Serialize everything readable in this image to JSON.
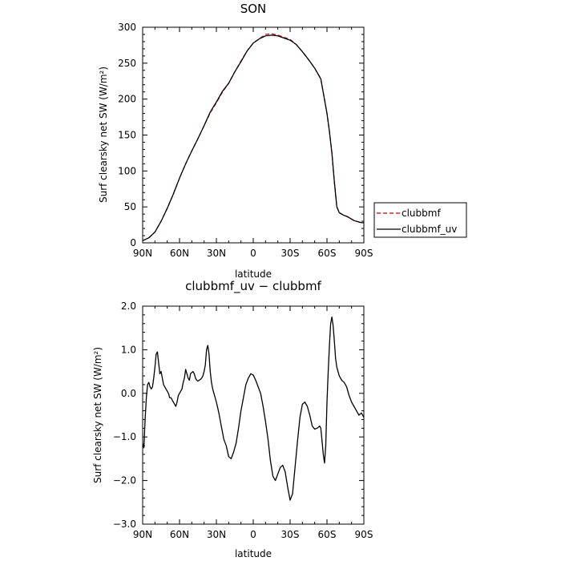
{
  "colors": {
    "clubbmf": "#cc0000",
    "clubbmf_uv": "#000000"
  },
  "chart_data": [
    {
      "type": "line",
      "title": "SON",
      "xlabel": "latitude",
      "ylabel": "Surf clearsky net SW (W/m²)",
      "xlim": [
        -90,
        90
      ],
      "ylim": [
        0,
        300
      ],
      "x_ticks": [
        -90,
        -60,
        -30,
        0,
        30,
        60,
        90
      ],
      "x_tick_labels": [
        "90N",
        "60N",
        "30N",
        "0",
        "30S",
        "60S",
        "90S"
      ],
      "y_ticks": [
        0,
        50,
        100,
        150,
        200,
        250,
        300
      ],
      "y_tick_labels": [
        "0",
        "50",
        "100",
        "150",
        "200",
        "250",
        "300"
      ],
      "grid": false,
      "legend": {
        "position": "right-outside"
      },
      "x": [
        -90,
        -85,
        -80,
        -75,
        -70,
        -65,
        -60,
        -55,
        -50,
        -45,
        -40,
        -35,
        -30,
        -25,
        -20,
        -15,
        -10,
        -5,
        0,
        5,
        10,
        15,
        20,
        25,
        30,
        35,
        40,
        45,
        50,
        55,
        60,
        62,
        64,
        66,
        68,
        70,
        72,
        74,
        76,
        78,
        80,
        82,
        84,
        86,
        88,
        90
      ],
      "series": [
        {
          "name": "clubbmf",
          "style": "dashed",
          "values": [
            3,
            7,
            15,
            30,
            48,
            68,
            90,
            110,
            128,
            145,
            163,
            181,
            195,
            210,
            222,
            238,
            253,
            267,
            278,
            284,
            290,
            291,
            289,
            286,
            283,
            276,
            266,
            255,
            243,
            228,
            180,
            155,
            125,
            85,
            50,
            42,
            40,
            38,
            37,
            35,
            33,
            31,
            30,
            29,
            28,
            28
          ]
        },
        {
          "name": "clubbmf_uv",
          "style": "solid",
          "values": [
            3,
            7,
            15,
            30,
            48,
            68,
            90,
            110,
            128,
            145,
            163,
            182,
            196,
            211,
            222,
            238,
            252,
            267,
            278,
            284,
            288,
            289,
            288,
            285,
            282,
            276,
            266,
            255,
            243,
            228,
            180,
            155,
            125,
            85,
            50,
            42,
            40,
            38,
            37,
            35,
            33,
            31,
            30,
            29,
            28,
            28
          ]
        }
      ]
    },
    {
      "type": "line",
      "title": "clubbmf_uv − clubbmf",
      "xlabel": "latitude",
      "ylabel": "Surf clearsky net SW (W/m²)",
      "xlim": [
        -90,
        90
      ],
      "ylim": [
        -3.0,
        2.0
      ],
      "x_ticks": [
        -90,
        -60,
        -30,
        0,
        30,
        60,
        90
      ],
      "x_tick_labels": [
        "90N",
        "60N",
        "30N",
        "0",
        "30S",
        "60S",
        "90S"
      ],
      "y_ticks": [
        -3.0,
        -2.0,
        -1.0,
        0.0,
        1.0,
        2.0
      ],
      "y_tick_labels": [
        "−3.0",
        "−2.0",
        "−1.0",
        "0.0",
        "1.0",
        "2.0"
      ],
      "grid": false,
      "x": [
        -90,
        -89,
        -88,
        -87,
        -86,
        -85,
        -84,
        -83,
        -82,
        -81,
        -80,
        -79,
        -78,
        -77,
        -76,
        -75,
        -74,
        -73,
        -72,
        -71,
        -70,
        -69,
        -68,
        -67,
        -66,
        -65,
        -64,
        -63,
        -62,
        -61,
        -60,
        -59,
        -58,
        -57,
        -56,
        -55,
        -54,
        -53,
        -52,
        -51,
        -50,
        -49,
        -48,
        -47,
        -46,
        -45,
        -44,
        -43,
        -42,
        -41,
        -40,
        -39,
        -38,
        -37,
        -36,
        -35,
        -34,
        -33,
        -32,
        -31,
        -30,
        -28,
        -26,
        -24,
        -22,
        -20,
        -18,
        -16,
        -14,
        -12,
        -10,
        -8,
        -6,
        -4,
        -2,
        0,
        2,
        4,
        6,
        8,
        10,
        12,
        14,
        16,
        18,
        20,
        22,
        24,
        26,
        28,
        30,
        32,
        34,
        36,
        38,
        40,
        42,
        44,
        46,
        48,
        50,
        52,
        54,
        55,
        56,
        57,
        58,
        59,
        60,
        61,
        62,
        63,
        64,
        65,
        66,
        67,
        68,
        70,
        72,
        74,
        76,
        78,
        80,
        82,
        84,
        86,
        88,
        90
      ],
      "series": [
        {
          "name": "clubbmf_uv − clubbmf",
          "values": [
            -1.15,
            -1.25,
            -0.6,
            -0.1,
            0.2,
            0.25,
            0.15,
            0.1,
            0.15,
            0.35,
            0.6,
            0.9,
            0.95,
            0.7,
            0.45,
            0.5,
            0.35,
            0.2,
            0.15,
            0.1,
            0.05,
            0.0,
            -0.1,
            -0.1,
            -0.15,
            -0.2,
            -0.25,
            -0.3,
            -0.2,
            -0.05,
            0.0,
            0.05,
            0.1,
            0.25,
            0.35,
            0.55,
            0.45,
            0.35,
            0.3,
            0.45,
            0.48,
            0.5,
            0.45,
            0.35,
            0.3,
            0.28,
            0.3,
            0.32,
            0.35,
            0.4,
            0.5,
            0.65,
            1.0,
            1.1,
            0.9,
            0.5,
            0.25,
            0.1,
            0.0,
            -0.1,
            -0.2,
            -0.45,
            -0.75,
            -1.05,
            -1.2,
            -1.45,
            -1.5,
            -1.35,
            -1.15,
            -0.8,
            -0.4,
            -0.1,
            0.2,
            0.35,
            0.45,
            0.42,
            0.3,
            0.15,
            0.0,
            -0.3,
            -0.65,
            -1.05,
            -1.55,
            -1.9,
            -2.0,
            -1.85,
            -1.7,
            -1.65,
            -1.8,
            -2.15,
            -2.45,
            -2.3,
            -1.7,
            -1.1,
            -0.55,
            -0.25,
            -0.2,
            -0.3,
            -0.5,
            -0.75,
            -0.82,
            -0.8,
            -0.75,
            -0.8,
            -1.1,
            -1.4,
            -1.6,
            -1.2,
            -0.2,
            0.5,
            1.1,
            1.6,
            1.75,
            1.55,
            1.2,
            0.8,
            0.6,
            0.4,
            0.3,
            0.25,
            0.15,
            -0.05,
            -0.2,
            -0.3,
            -0.4,
            -0.5,
            -0.45,
            -0.55
          ]
        }
      ]
    }
  ]
}
